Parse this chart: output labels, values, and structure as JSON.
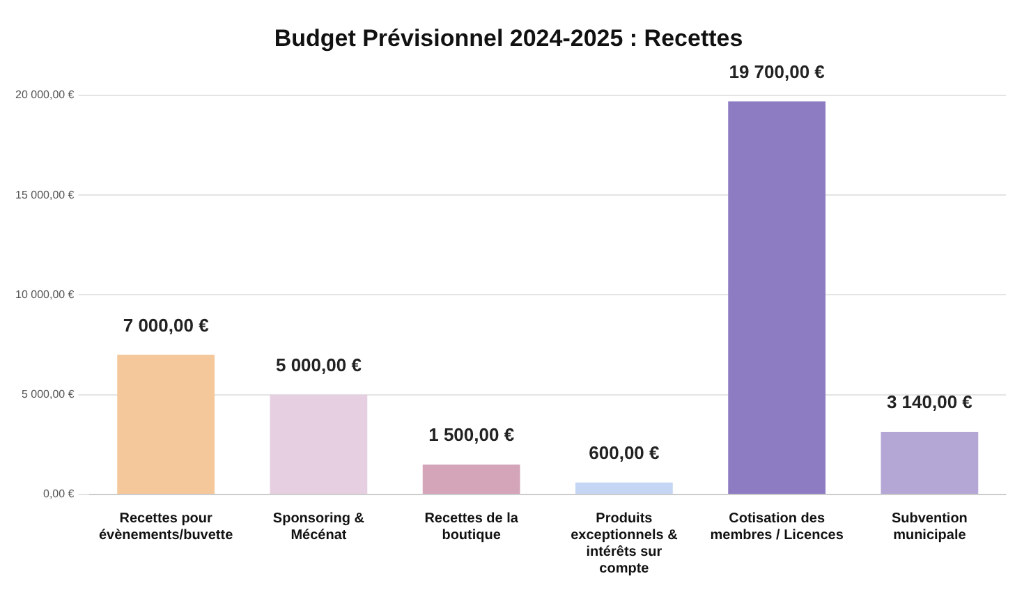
{
  "chart_data": {
    "type": "bar",
    "title": "Budget Prévisionnel 2024-2025 : Recettes",
    "categories": [
      "Recettes pour évènements/buvette",
      "Sponsoring & Mécénat",
      "Recettes de la boutique",
      "Produits exceptionnels & intérêts sur compte",
      "Cotisation des membres / Licences",
      "Subvention municipale"
    ],
    "values": [
      7000,
      5000,
      1500,
      600,
      19700,
      3140
    ],
    "colors": [
      "#f4c89a",
      "#e6cfe0",
      "#d4a5b8",
      "#c5d5f4",
      "#8e7cc3",
      "#b4a7d6"
    ],
    "value_labels": [
      "7 000,00 €",
      "5 000,00 €",
      "1 500,00 €",
      "600,00 €",
      "19 700,00 €",
      "3 140,00 €"
    ],
    "ylim": [
      0,
      20000
    ],
    "yticks": [
      {
        "value": 0,
        "label": "0,00 €"
      },
      {
        "value": 5000,
        "label": "5 000,00 €"
      },
      {
        "value": 10000,
        "label": "10 000,00 €"
      },
      {
        "value": 15000,
        "label": "15 000,00 €"
      },
      {
        "value": 20000,
        "label": "20 000,00 €"
      }
    ],
    "grid": "y",
    "legend": false
  }
}
